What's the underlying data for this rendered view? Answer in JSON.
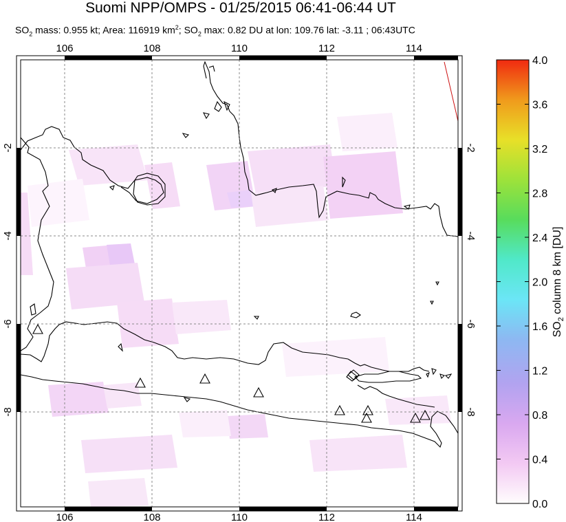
{
  "header": {
    "title": "Suomi NPP/OMPS - 01/25/2015 06:41-06:44 UT",
    "subtitle_parts": {
      "a": "SO",
      "a_sub": "2",
      "b": " mass: 0.955 kt; Area: 116919 km",
      "b_sup": "2",
      "c": "; SO",
      "c_sub": "2",
      "d": " max: 0.82 DU at lon: 109.76 lat: -3.11 ; 06:43UTC"
    }
  },
  "map": {
    "lon_ticks": [
      "106",
      "108",
      "110",
      "112",
      "114"
    ],
    "lat_ticks": [
      "-2",
      "-4",
      "-6",
      "-8"
    ],
    "lon_range": [
      105,
      115
    ],
    "lat_range": [
      -10,
      0
    ],
    "volcano_icon": "triangle-volcano-icon",
    "colors": {
      "coast": "#000000",
      "grid": "#808080",
      "so2_low": "#f6d6f6",
      "so2_mid": "#eec8f6"
    }
  },
  "colorbar": {
    "label_main": "SO",
    "label_sub": "2",
    "label_rest": " column 8 km [DU]",
    "ticks": [
      "0.0",
      "0.4",
      "0.8",
      "1.2",
      "1.6",
      "2.0",
      "2.4",
      "2.8",
      "3.2",
      "3.6",
      "4.0"
    ],
    "range": [
      0,
      4
    ],
    "gradient": [
      "#fffdfd",
      "#f3c9f3",
      "#c89ff0",
      "#9ca9f0",
      "#7ecbf0",
      "#5cf4f5",
      "#4ee0a0",
      "#5cdc40",
      "#c5e830",
      "#f0d020",
      "#f08018",
      "#f03010"
    ]
  }
}
